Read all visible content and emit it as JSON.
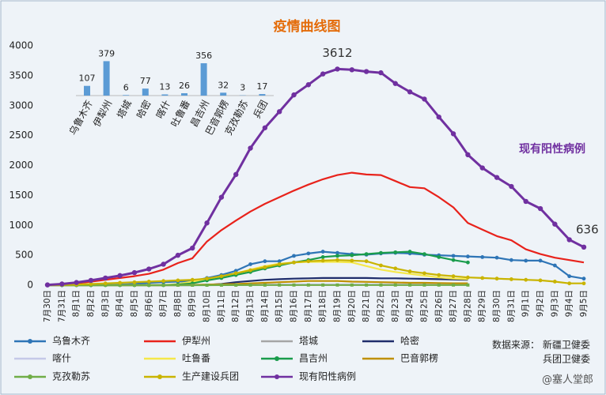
{
  "chart_data": [
    {
      "type": "line",
      "title": "疫情曲线图",
      "categories": [
        "7月30日",
        "7月31日",
        "8月1日",
        "8月2日",
        "8月3日",
        "8月4日",
        "8月5日",
        "8月6日",
        "8月7日",
        "8月8日",
        "8月9日",
        "8月10日",
        "8月11日",
        "8月12日",
        "8月13日",
        "8月14日",
        "8月15日",
        "8月16日",
        "8月17日",
        "8月18日",
        "8月19日",
        "8月20日",
        "8月21日",
        "8月22日",
        "8月23日",
        "8月24日",
        "8月25日",
        "8月26日",
        "8月27日",
        "8月28日",
        "8月29日",
        "8月30日",
        "8月31日",
        "9月1日",
        "9月2日",
        "9月3日",
        "9月4日",
        "9月5日"
      ],
      "ylim": [
        0,
        4000
      ],
      "yticks": [
        0,
        500,
        1000,
        1500,
        2000,
        2500,
        3000,
        3500,
        4000
      ],
      "grid": false,
      "annotations": [
        "数据来源：  新疆卫健委",
        "兵团卫健委",
        "@塞人堂郎"
      ],
      "series": [
        {
          "name": "乌鲁木齐",
          "color": "#2e75b6",
          "marker": "circle",
          "values": [
            0,
            0,
            0,
            0,
            5,
            10,
            20,
            40,
            50,
            60,
            70,
            120,
            170,
            240,
            350,
            400,
            400,
            490,
            530,
            560,
            540,
            520,
            510,
            530,
            540,
            530,
            510,
            500,
            490,
            480,
            470,
            460,
            420,
            410,
            410,
            330,
            150,
            110
          ]
        },
        {
          "name": "伊犁州",
          "color": "#e8221b",
          "values": [
            0,
            10,
            30,
            60,
            90,
            120,
            150,
            190,
            260,
            370,
            450,
            730,
            920,
            1080,
            1230,
            1360,
            1470,
            1580,
            1680,
            1770,
            1840,
            1880,
            1850,
            1840,
            1740,
            1640,
            1620,
            1470,
            1300,
            1040,
            930,
            820,
            750,
            600,
            520,
            460,
            420,
            380
          ]
        },
        {
          "name": "塔城",
          "color": "#a6a6a6",
          "values": [
            0,
            0,
            0,
            0,
            0,
            0,
            0,
            0,
            0,
            2,
            3,
            4,
            5,
            6,
            6,
            6,
            7,
            7,
            7,
            7,
            7,
            7,
            6,
            6,
            6,
            6,
            6,
            6,
            6,
            6,
            null,
            null,
            null,
            null,
            null,
            null,
            null,
            null
          ]
        },
        {
          "name": "哈密",
          "color": "#1f2d6b",
          "values": [
            0,
            0,
            0,
            0,
            0,
            0,
            0,
            0,
            0,
            0,
            0,
            5,
            20,
            50,
            70,
            90,
            100,
            110,
            115,
            120,
            120,
            120,
            120,
            115,
            115,
            110,
            105,
            100,
            95,
            90,
            null,
            null,
            null,
            null,
            null,
            null,
            null,
            null
          ]
        },
        {
          "name": "喀什",
          "color": "#c5c9e8",
          "values": [
            0,
            0,
            0,
            0,
            0,
            0,
            0,
            0,
            0,
            2,
            4,
            6,
            8,
            10,
            12,
            13,
            13,
            13,
            13,
            13,
            13,
            13,
            13,
            13,
            13,
            13,
            13,
            13,
            13,
            13,
            null,
            null,
            null,
            null,
            null,
            null,
            null,
            null
          ]
        },
        {
          "name": "吐鲁番",
          "color": "#f5e84a",
          "values": [
            0,
            0,
            0,
            0,
            0,
            0,
            0,
            0,
            0,
            20,
            60,
            100,
            150,
            200,
            260,
            320,
            360,
            380,
            390,
            390,
            390,
            380,
            320,
            260,
            220,
            190,
            160,
            130,
            110,
            100,
            null,
            null,
            null,
            null,
            null,
            null,
            null,
            null
          ]
        },
        {
          "name": "昌吉州",
          "color": "#1a9c4c",
          "marker": "circle",
          "values": [
            0,
            0,
            0,
            0,
            0,
            0,
            0,
            0,
            0,
            10,
            30,
            80,
            120,
            170,
            220,
            280,
            330,
            380,
            420,
            470,
            490,
            500,
            520,
            540,
            550,
            560,
            520,
            470,
            420,
            380,
            null,
            null,
            null,
            null,
            null,
            null,
            null,
            null
          ]
        },
        {
          "name": "巴音郭楞",
          "color": "#bf9000",
          "values": [
            0,
            0,
            0,
            0,
            0,
            0,
            0,
            0,
            0,
            0,
            5,
            10,
            15,
            20,
            30,
            40,
            50,
            60,
            70,
            70,
            70,
            60,
            55,
            50,
            45,
            40,
            40,
            35,
            32,
            32,
            null,
            null,
            null,
            null,
            null,
            null,
            null,
            null
          ]
        },
        {
          "name": "克孜勒苏",
          "color": "#70ad47",
          "marker": "square",
          "values": [
            0,
            0,
            0,
            0,
            0,
            0,
            0,
            0,
            0,
            0,
            0,
            0,
            1,
            1,
            2,
            2,
            3,
            3,
            3,
            3,
            3,
            3,
            3,
            3,
            3,
            3,
            3,
            3,
            3,
            3,
            null,
            null,
            null,
            null,
            null,
            null,
            null,
            null
          ]
        },
        {
          "name": "生产建设兵团",
          "color": "#c9b400",
          "marker": "circle",
          "values": [
            0,
            5,
            10,
            20,
            30,
            40,
            50,
            60,
            70,
            80,
            90,
            110,
            150,
            200,
            250,
            300,
            350,
            380,
            400,
            410,
            420,
            410,
            400,
            330,
            280,
            230,
            200,
            170,
            150,
            130,
            120,
            110,
            100,
            90,
            80,
            60,
            30,
            30
          ]
        },
        {
          "name": "现有阳性病例",
          "color": "#7030a0",
          "marker": "circle",
          "values": [
            5,
            20,
            45,
            80,
            120,
            160,
            210,
            270,
            350,
            500,
            620,
            1040,
            1470,
            1850,
            2290,
            2630,
            2900,
            3180,
            3350,
            3530,
            3612,
            3600,
            3570,
            3550,
            3370,
            3230,
            3110,
            2810,
            2530,
            2180,
            1960,
            1800,
            1650,
            1400,
            1280,
            1020,
            760,
            636
          ]
        }
      ]
    },
    {
      "type": "bar",
      "color": "#5b9bd5",
      "categories": [
        "乌鲁木齐",
        "伊犁州",
        "塔城",
        "哈密",
        "喀什",
        "吐鲁番",
        "昌吉州",
        "巴音郭楞",
        "克孜勒苏",
        "兵团"
      ],
      "values": [
        107,
        379,
        6,
        77,
        13,
        26,
        356,
        32,
        3,
        17
      ]
    }
  ]
}
